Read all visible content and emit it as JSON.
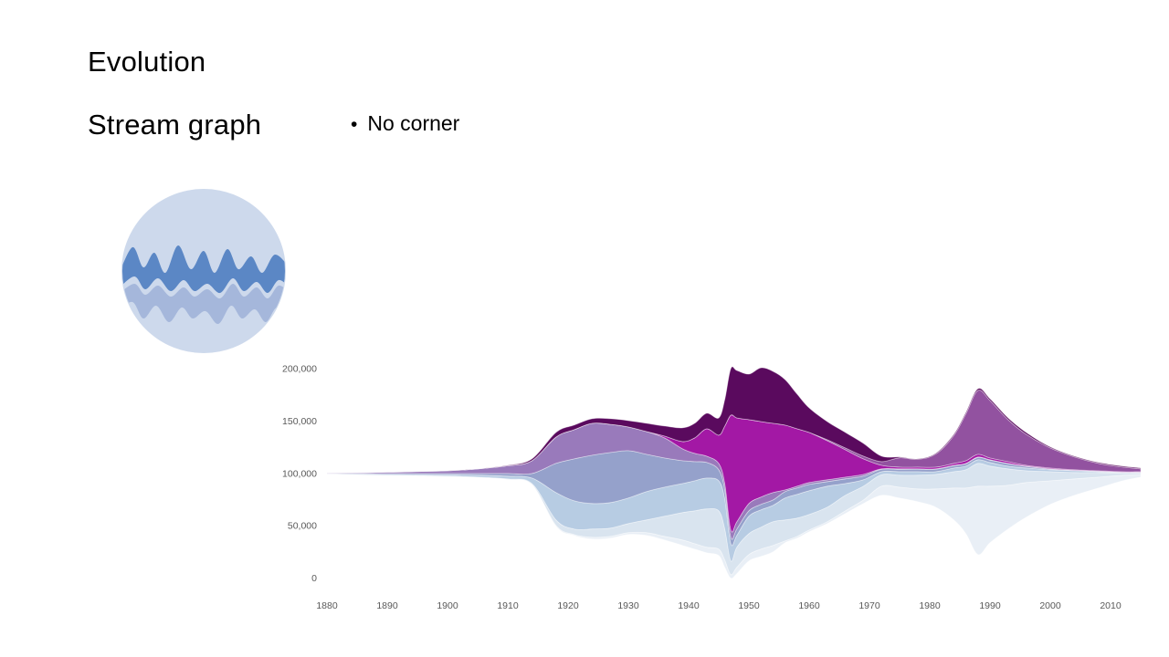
{
  "slide": {
    "title": "Evolution",
    "subtitle": "Stream graph",
    "bullet_marker": "•",
    "bullet_text": "No corner"
  },
  "icon": {
    "label": "streamgraph-icon",
    "bg_color": "#cdd9ec",
    "wave_dark_color": "#5b87c5",
    "wave_light_color": "#a2b5da"
  },
  "chart_data": {
    "type": "streamgraph",
    "title": "",
    "xlabel": "",
    "ylabel": "",
    "grid": false,
    "legend": "none",
    "axis_text_color": "#595959",
    "x_range": [
      1880,
      2015
    ],
    "x_ticks": [
      1880,
      1890,
      1900,
      1910,
      1920,
      1930,
      1940,
      1950,
      1960,
      1970,
      1980,
      1990,
      2000,
      2010
    ],
    "y_ticks": [
      0,
      50000,
      100000,
      150000,
      200000
    ],
    "y_tick_labels": [
      "0",
      "50,000",
      "100,000",
      "150,000",
      "200,000"
    ],
    "series": [
      {
        "name": "layer-1-dark-plum",
        "color": "#5a0a5e"
      },
      {
        "name": "layer-2-orchid",
        "color": "#9252a0"
      },
      {
        "name": "layer-3-magenta",
        "color": "#a318a5"
      },
      {
        "name": "layer-4-lavender",
        "color": "#997abb"
      },
      {
        "name": "layer-5-periwinkle",
        "color": "#95a1cb"
      },
      {
        "name": "layer-6-light-blue",
        "color": "#b7cce3"
      },
      {
        "name": "layer-7-pale-blue",
        "color": "#d9e4ef"
      },
      {
        "name": "layer-8-palest-blue",
        "color": "#e9eff6"
      }
    ],
    "x": [
      1880,
      1890,
      1900,
      1905,
      1910,
      1914,
      1918,
      1921,
      1924,
      1927,
      1930,
      1933,
      1936,
      1939,
      1941,
      1943,
      1945,
      1946,
      1947,
      1948,
      1950,
      1952,
      1954,
      1956,
      1958,
      1960,
      1963,
      1966,
      1969,
      1972,
      1975,
      1978,
      1981,
      1984,
      1986,
      1988,
      1990,
      1993,
      1996,
      2000,
      2004,
      2008,
      2012,
      2015
    ],
    "stack_boundaries": [
      [
        100400,
        100400,
        100400,
        100400,
        100000,
        99800,
        99600,
        99600,
        99600
      ],
      [
        101300,
        101300,
        101300,
        101300,
        100000,
        99100,
        98300,
        98300,
        98300
      ],
      [
        102600,
        102600,
        102600,
        102600,
        100000,
        98700,
        97400,
        97400,
        97400
      ],
      [
        104400,
        104400,
        104400,
        104400,
        100000,
        98300,
        96500,
        96500,
        96500
      ],
      [
        107800,
        107400,
        107400,
        107400,
        100000,
        97400,
        94800,
        94300,
        94300
      ],
      [
        113900,
        112200,
        112200,
        112200,
        100000,
        95600,
        90400,
        89500,
        89500
      ],
      [
        139200,
        134800,
        134800,
        134800,
        109600,
        81700,
        55600,
        50400,
        49500
      ],
      [
        146200,
        141800,
        141800,
        141800,
        113900,
        73900,
        46900,
        41700,
        40800
      ],
      [
        152300,
        147900,
        147900,
        147900,
        117400,
        71300,
        46900,
        39000,
        37300
      ],
      [
        152300,
        147000,
        147000,
        147000,
        120000,
        72100,
        47700,
        39900,
        38200
      ],
      [
        150500,
        144400,
        144400,
        144400,
        121800,
        76500,
        52100,
        43400,
        41700
      ],
      [
        147900,
        140100,
        140100,
        140100,
        118300,
        82600,
        55600,
        43400,
        40800
      ],
      [
        145300,
        135700,
        135700,
        134000,
        114800,
        86900,
        59100,
        39900,
        36400
      ],
      [
        143600,
        130500,
        130500,
        123500,
        112200,
        90400,
        62600,
        36400,
        31200
      ],
      [
        147900,
        134000,
        134000,
        119200,
        111300,
        93000,
        64300,
        32900,
        27700
      ],
      [
        157500,
        142700,
        142700,
        116500,
        110500,
        95600,
        66100,
        29500,
        24200
      ],
      [
        153100,
        136600,
        136600,
        109600,
        103500,
        93000,
        64300,
        27700,
        21600
      ],
      [
        170600,
        145300,
        145300,
        90400,
        84300,
        75600,
        46900,
        17300,
        10300
      ],
      [
        200200,
        155700,
        155700,
        46000,
        39000,
        32900,
        16400,
        3400,
        0
      ],
      [
        198400,
        153100,
        153100,
        53800,
        46900,
        40800,
        29500,
        10300,
        4300
      ],
      [
        194900,
        151400,
        151400,
        71300,
        64300,
        59100,
        42500,
        22500,
        16400
      ],
      [
        201000,
        149600,
        149600,
        77400,
        70400,
        65200,
        48600,
        27700,
        20700
      ],
      [
        197600,
        147900,
        147900,
        81700,
        74700,
        69500,
        53900,
        31200,
        25100
      ],
      [
        189700,
        146200,
        146200,
        84300,
        82600,
        76500,
        55600,
        35500,
        33800
      ],
      [
        175800,
        142700,
        142700,
        87800,
        86100,
        80000,
        57300,
        39900,
        38200
      ],
      [
        162700,
        139200,
        139200,
        91300,
        89500,
        83500,
        60800,
        46000,
        44300
      ],
      [
        149600,
        132200,
        131300,
        93900,
        92200,
        87800,
        67800,
        53900,
        52100
      ],
      [
        139200,
        124400,
        122600,
        96500,
        94800,
        90400,
        79100,
        64300,
        61700
      ],
      [
        128700,
        116500,
        113900,
        99100,
        97400,
        93900,
        87800,
        74700,
        71300
      ],
      [
        116500,
        111300,
        107800,
        104400,
        103900,
        101700,
        98700,
        87800,
        79100
      ],
      [
        115700,
        115000,
        106100,
        104400,
        104000,
        101700,
        98300,
        86900,
        76500
      ],
      [
        113900,
        113500,
        106100,
        104400,
        104100,
        101700,
        98300,
        85200,
        73000
      ],
      [
        119200,
        118500,
        106100,
        104400,
        104100,
        101700,
        99100,
        85200,
        67800
      ],
      [
        137500,
        136300,
        109600,
        107800,
        107400,
        105200,
        101700,
        86100,
        55600
      ],
      [
        158400,
        157000,
        112200,
        109600,
        109200,
        107000,
        103500,
        86100,
        42500
      ],
      [
        181000,
        179300,
        118300,
        115700,
        115300,
        113100,
        109600,
        87800,
        22500
      ],
      [
        171400,
        169700,
        114800,
        113100,
        112700,
        110500,
        107000,
        87800,
        33800
      ],
      [
        153100,
        151400,
        111300,
        109600,
        109300,
        107000,
        104400,
        88700,
        46900
      ],
      [
        139200,
        137500,
        107800,
        107000,
        106700,
        105200,
        102600,
        91300,
        58200
      ],
      [
        125300,
        124400,
        105200,
        104400,
        104200,
        103500,
        101700,
        93000,
        70400
      ],
      [
        116500,
        115700,
        103500,
        103000,
        102900,
        102600,
        100900,
        94800,
        79100
      ],
      [
        110500,
        109600,
        102600,
        102200,
        102100,
        101700,
        100900,
        96500,
        86100
      ],
      [
        107000,
        106100,
        101700,
        101300,
        101200,
        100900,
        100400,
        98300,
        93000
      ],
      [
        105200,
        104400,
        101700,
        101300,
        101200,
        100900,
        100400,
        99100,
        96500
      ]
    ]
  }
}
